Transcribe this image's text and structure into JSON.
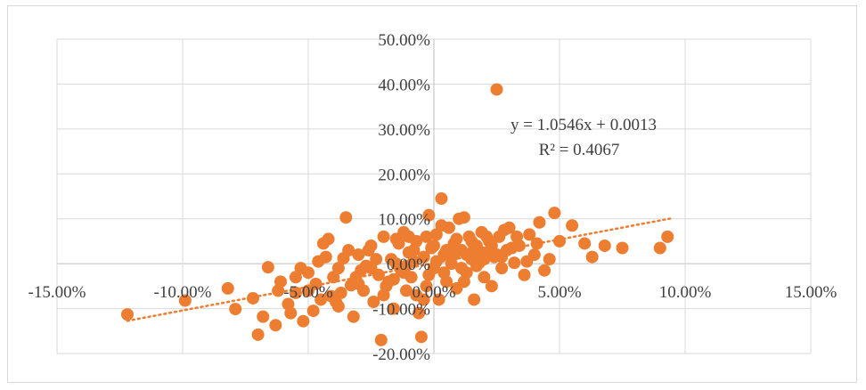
{
  "chart_data": {
    "type": "scatter",
    "title": "",
    "xlabel": "",
    "ylabel": "",
    "xlim": [
      -0.15,
      0.15
    ],
    "ylim": [
      -0.2,
      0.5
    ],
    "x_ticks": [
      -0.15,
      -0.1,
      -0.05,
      0.0,
      0.05,
      0.1,
      0.15
    ],
    "y_ticks": [
      -0.2,
      -0.1,
      0.0,
      0.1,
      0.2,
      0.3,
      0.4,
      0.5
    ],
    "x_tick_labels": [
      "-15.00%",
      "-10.00%",
      "-5.00%",
      "0.00%",
      "5.00%",
      "10.00%",
      "15.00%"
    ],
    "y_tick_labels": [
      "-20.00%",
      "-10.00%",
      "0.00%",
      "10.00%",
      "20.00%",
      "30.00%",
      "40.00%",
      "50.00%"
    ],
    "grid": "vertical and horizontal major gridlines",
    "legend": "none",
    "marker_color": "#ED7D31",
    "trendline": {
      "type": "linear",
      "slope": 1.0546,
      "intercept": 0.0013,
      "x_range": [
        -0.122,
        0.094
      ],
      "style": "dotted",
      "color": "#ED7D31",
      "equation_label": "y = 1.0546x + 0.0013",
      "r2_label": "R² = 0.4067"
    },
    "points": [
      [
        -0.122,
        -0.113
      ],
      [
        -0.099,
        -0.082
      ],
      [
        -0.082,
        -0.055
      ],
      [
        -0.079,
        -0.101
      ],
      [
        -0.072,
        -0.077
      ],
      [
        -0.07,
        -0.158
      ],
      [
        -0.068,
        -0.118
      ],
      [
        -0.066,
        -0.008
      ],
      [
        -0.063,
        -0.137
      ],
      [
        -0.061,
        -0.04
      ],
      [
        -0.058,
        -0.09
      ],
      [
        -0.055,
        -0.065
      ],
      [
        -0.052,
        -0.128
      ],
      [
        -0.05,
        -0.02
      ],
      [
        -0.048,
        -0.105
      ],
      [
        -0.046,
        0.005
      ],
      [
        -0.044,
        0.045
      ],
      [
        -0.042,
        0.055
      ],
      [
        -0.041,
        -0.072
      ],
      [
        -0.04,
        -0.03
      ],
      [
        -0.038,
        -0.095
      ],
      [
        -0.036,
        0.012
      ],
      [
        -0.035,
        0.103
      ],
      [
        -0.033,
        -0.048
      ],
      [
        -0.032,
        -0.118
      ],
      [
        -0.03,
        0.02
      ],
      [
        -0.028,
        -0.06
      ],
      [
        -0.027,
        -0.005
      ],
      [
        -0.025,
        0.04
      ],
      [
        -0.024,
        -0.085
      ],
      [
        -0.022,
        -0.025
      ],
      [
        -0.021,
        -0.17
      ],
      [
        -0.02,
        0.06
      ],
      [
        -0.018,
        -0.04
      ],
      [
        -0.017,
        0.01
      ],
      [
        -0.016,
        -0.1
      ],
      [
        -0.014,
        0.045
      ],
      [
        -0.013,
        -0.015
      ],
      [
        -0.012,
        0.07
      ],
      [
        -0.011,
        -0.06
      ],
      [
        -0.01,
        0.025
      ],
      [
        -0.009,
        -0.03
      ],
      [
        -0.008,
        0.005
      ],
      [
        -0.007,
        0.05
      ],
      [
        -0.006,
        -0.11
      ],
      [
        -0.005,
        -0.163
      ],
      [
        -0.004,
        0.015
      ],
      [
        -0.003,
        -0.05
      ],
      [
        -0.002,
        0.108
      ],
      [
        -0.001,
        0.035
      ],
      [
        0.0,
        -0.01
      ],
      [
        0.001,
        0.065
      ],
      [
        0.002,
        -0.08
      ],
      [
        0.003,
        0.145
      ],
      [
        0.004,
        0.02
      ],
      [
        0.005,
        -0.04
      ],
      [
        0.006,
        0.08
      ],
      [
        0.007,
        0.0
      ],
      [
        0.008,
        0.045
      ],
      [
        0.009,
        -0.055
      ],
      [
        0.01,
        0.1
      ],
      [
        0.011,
        0.03
      ],
      [
        0.012,
        0.103
      ],
      [
        0.013,
        -0.02
      ],
      [
        0.014,
        0.06
      ],
      [
        0.015,
        0.01
      ],
      [
        0.016,
        -0.08
      ],
      [
        0.017,
        0.04
      ],
      [
        0.018,
        0.002
      ],
      [
        0.019,
        0.07
      ],
      [
        0.02,
        -0.03
      ],
      [
        0.021,
        0.025
      ],
      [
        0.022,
        0.05
      ],
      [
        0.023,
        -0.05
      ],
      [
        0.024,
        0.015
      ],
      [
        0.025,
        0.388
      ],
      [
        0.026,
        0.06
      ],
      [
        0.027,
        -0.01
      ],
      [
        0.028,
        0.075
      ],
      [
        0.029,
        0.03
      ],
      [
        0.03,
        0.08
      ],
      [
        0.032,
        0.002
      ],
      [
        0.034,
        0.04
      ],
      [
        0.036,
        -0.025
      ],
      [
        0.038,
        0.065
      ],
      [
        0.04,
        0.02
      ],
      [
        0.042,
        0.092
      ],
      [
        0.044,
        -0.015
      ],
      [
        0.046,
        0.01
      ],
      [
        0.048,
        0.113
      ],
      [
        0.05,
        0.05
      ],
      [
        0.055,
        0.085
      ],
      [
        0.06,
        0.045
      ],
      [
        0.063,
        0.015
      ],
      [
        0.068,
        0.04
      ],
      [
        0.075,
        0.035
      ],
      [
        0.09,
        0.035
      ],
      [
        0.093,
        0.06
      ],
      [
        -0.045,
        -0.08
      ],
      [
        -0.038,
        -0.01
      ],
      [
        -0.03,
        -0.045
      ],
      [
        -0.026,
        0.03
      ],
      [
        -0.02,
        -0.07
      ],
      [
        -0.015,
        0.0
      ],
      [
        -0.012,
        -0.02
      ],
      [
        -0.008,
        0.03
      ],
      [
        -0.004,
        -0.08
      ],
      [
        0.0,
        0.04
      ],
      [
        0.004,
        -0.02
      ],
      [
        0.008,
        0.02
      ],
      [
        0.012,
        -0.04
      ],
      [
        0.016,
        0.035
      ],
      [
        0.02,
        0.01
      ],
      [
        -0.055,
        -0.03
      ],
      [
        -0.05,
        -0.06
      ],
      [
        -0.043,
        0.015
      ],
      [
        -0.037,
        -0.065
      ],
      [
        -0.034,
        0.03
      ],
      [
        -0.029,
        -0.015
      ],
      [
        -0.023,
        0.01
      ],
      [
        -0.019,
        -0.05
      ],
      [
        -0.015,
        0.055
      ],
      [
        -0.011,
        -0.005
      ],
      [
        -0.007,
        -0.07
      ],
      [
        -0.003,
        0.06
      ],
      [
        0.001,
        0.005
      ],
      [
        0.005,
        0.03
      ],
      [
        0.009,
        0.055
      ],
      [
        0.013,
        0.02
      ],
      [
        0.017,
        -0.005
      ],
      [
        0.021,
        0.06
      ],
      [
        0.025,
        0.02
      ],
      [
        -0.062,
        -0.06
      ],
      [
        -0.057,
        -0.11
      ],
      [
        -0.053,
        -0.01
      ],
      [
        -0.047,
        -0.045
      ],
      [
        -0.039,
        -0.085
      ],
      [
        -0.031,
        -0.03
      ],
      [
        -0.025,
        -0.01
      ],
      [
        -0.016,
        -0.035
      ],
      [
        -0.01,
        0.06
      ],
      [
        -0.002,
        -0.025
      ],
      [
        0.003,
        0.085
      ],
      [
        0.011,
        -0.01
      ],
      [
        0.015,
        0.05
      ],
      [
        0.019,
        0.025
      ],
      [
        0.023,
        0.04
      ],
      [
        0.027,
        0.015
      ],
      [
        0.031,
        0.035
      ],
      [
        0.033,
        0.06
      ],
      [
        0.037,
        0.005
      ],
      [
        0.041,
        0.045
      ]
    ]
  }
}
